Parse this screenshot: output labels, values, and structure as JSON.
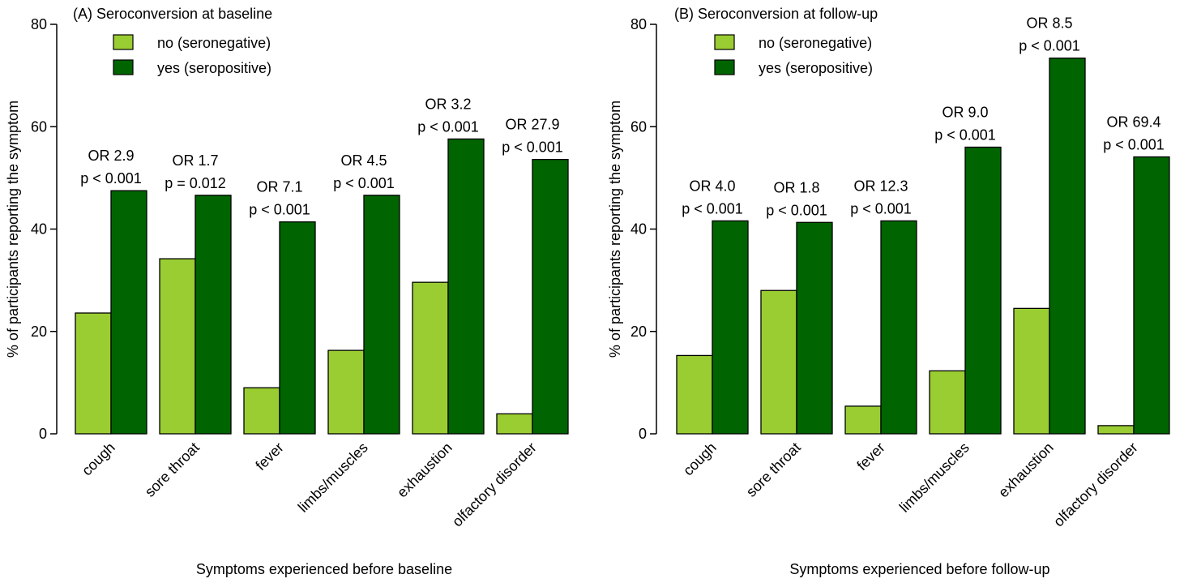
{
  "colors": {
    "no": "#9acd32",
    "yes": "#006400",
    "axis": "#000000"
  },
  "legend": {
    "no_label": "no (seronegative)",
    "yes_label": "yes (seropositive)"
  },
  "chart_data": [
    {
      "type": "bar",
      "title": "(A) Seroconversion at baseline",
      "xlabel": "Symptoms experienced before baseline",
      "ylabel": "% of participants reporting the symptom",
      "ylim": [
        0,
        80
      ],
      "yticks": [
        0,
        20,
        40,
        60,
        80
      ],
      "categories": [
        "cough",
        "sore throat",
        "fever",
        "limbs/muscles",
        "exhaustion",
        "olfactory disorder"
      ],
      "series": [
        {
          "name": "no (seronegative)",
          "values": [
            23.6,
            34.2,
            9.0,
            16.3,
            29.6,
            3.9
          ]
        },
        {
          "name": "yes (seropositive)",
          "values": [
            47.5,
            46.6,
            41.4,
            46.6,
            57.6,
            53.6
          ]
        }
      ],
      "annotations": [
        {
          "or": "OR 2.9",
          "p": "p < 0.001"
        },
        {
          "or": "OR 1.7",
          "p": "p = 0.012"
        },
        {
          "or": "OR 7.1",
          "p": "p < 0.001"
        },
        {
          "or": "OR 4.5",
          "p": "p < 0.001"
        },
        {
          "or": "OR 3.2",
          "p": "p < 0.001"
        },
        {
          "or": "OR 27.9",
          "p": "p < 0.001"
        }
      ],
      "legend_position": "top-left",
      "grid": false
    },
    {
      "type": "bar",
      "title": "(B) Seroconversion at follow-up",
      "xlabel": "Symptoms experienced before follow-up",
      "ylabel": "% of participants reporting the symptom",
      "ylim": [
        0,
        80
      ],
      "yticks": [
        0,
        20,
        40,
        60,
        80
      ],
      "categories": [
        "cough",
        "sore throat",
        "fever",
        "limbs/muscles",
        "exhaustion",
        "olfactory disorder"
      ],
      "series": [
        {
          "name": "no (seronegative)",
          "values": [
            15.3,
            28.0,
            5.4,
            12.3,
            24.5,
            1.6
          ]
        },
        {
          "name": "yes (seropositive)",
          "values": [
            41.6,
            41.3,
            41.6,
            56.0,
            73.4,
            54.1
          ]
        }
      ],
      "annotations": [
        {
          "or": "OR 4.0",
          "p": "p < 0.001"
        },
        {
          "or": "OR 1.8",
          "p": "p < 0.001"
        },
        {
          "or": "OR 12.3",
          "p": "p < 0.001"
        },
        {
          "or": "OR 9.0",
          "p": "p < 0.001"
        },
        {
          "or": "OR 8.5",
          "p": "p < 0.001"
        },
        {
          "or": "OR 69.4",
          "p": "p < 0.001"
        }
      ],
      "legend_position": "top-left",
      "grid": false
    }
  ]
}
